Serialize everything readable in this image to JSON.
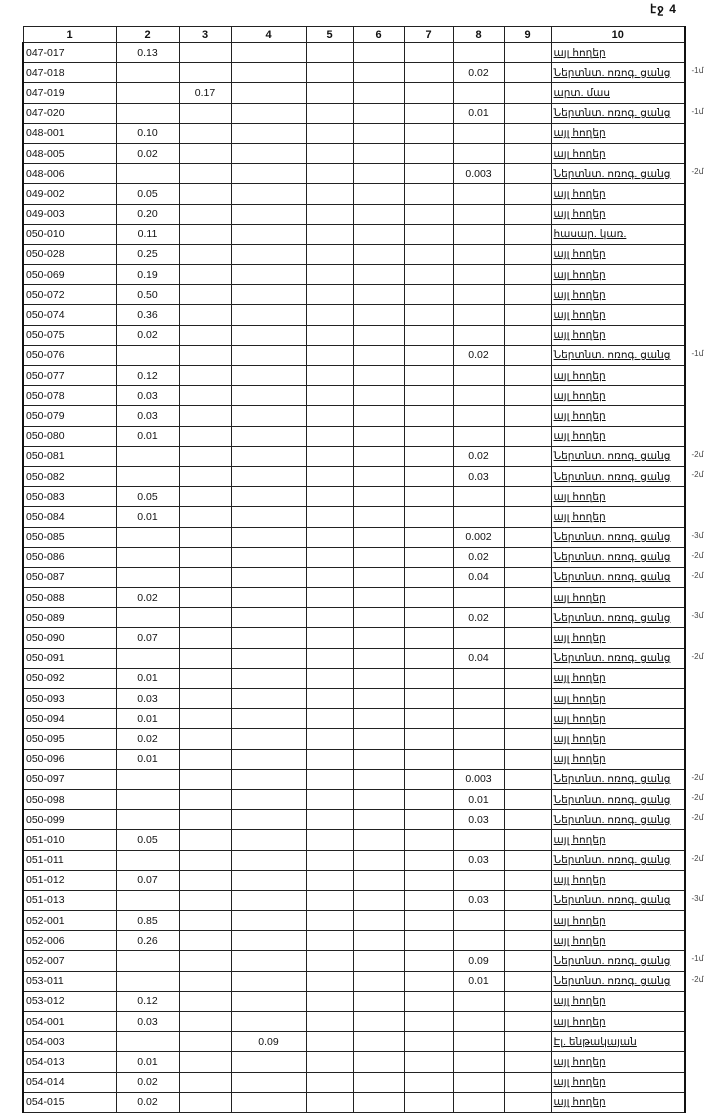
{
  "page_label": "էջ 4",
  "headers": [
    "1",
    "2",
    "3",
    "4",
    "5",
    "6",
    "7",
    "8",
    "9",
    "10"
  ],
  "rows": [
    {
      "cells": [
        "047-017",
        "0.13",
        "",
        "",
        "",
        "",
        "",
        "",
        "",
        "այլ հողեր"
      ],
      "mark": ""
    },
    {
      "cells": [
        "047-018",
        "",
        "",
        "",
        "",
        "",
        "",
        "0.02",
        "",
        "Ներտնտ. ոռոգ. ցանց"
      ],
      "mark": "-1մ"
    },
    {
      "cells": [
        "047-019",
        "",
        "0.17",
        "",
        "",
        "",
        "",
        "",
        "",
        "արտ. մաս"
      ],
      "mark": ""
    },
    {
      "cells": [
        "047-020",
        "",
        "",
        "",
        "",
        "",
        "",
        "0.01",
        "",
        "Ներտնտ. ոռոգ. ցանց"
      ],
      "mark": "-1մ"
    },
    {
      "cells": [
        "048-001",
        "0.10",
        "",
        "",
        "",
        "",
        "",
        "",
        "",
        "այլ հողեր"
      ],
      "mark": ""
    },
    {
      "cells": [
        "048-005",
        "0.02",
        "",
        "",
        "",
        "",
        "",
        "",
        "",
        "այլ հողեր"
      ],
      "mark": ""
    },
    {
      "cells": [
        "048-006",
        "",
        "",
        "",
        "",
        "",
        "",
        "0.003",
        "",
        "Ներտնտ. ոռոգ. ցանց"
      ],
      "mark": "-2մ"
    },
    {
      "cells": [
        "049-002",
        "0.05",
        "",
        "",
        "",
        "",
        "",
        "",
        "",
        "այլ հողեր"
      ],
      "mark": ""
    },
    {
      "cells": [
        "049-003",
        "0.20",
        "",
        "",
        "",
        "",
        "",
        "",
        "",
        "այլ հողեր"
      ],
      "mark": ""
    },
    {
      "cells": [
        "050-010",
        "0.11",
        "",
        "",
        "",
        "",
        "",
        "",
        "",
        "հասար. կառ."
      ],
      "mark": ""
    },
    {
      "cells": [
        "050-028",
        "0.25",
        "",
        "",
        "",
        "",
        "",
        "",
        "",
        "այլ հողեր"
      ],
      "mark": ""
    },
    {
      "cells": [
        "050-069",
        "0.19",
        "",
        "",
        "",
        "",
        "",
        "",
        "",
        "այլ հողեր"
      ],
      "mark": ""
    },
    {
      "cells": [
        "050-072",
        "0.50",
        "",
        "",
        "",
        "",
        "",
        "",
        "",
        "այլ հողեր"
      ],
      "mark": ""
    },
    {
      "cells": [
        "050-074",
        "0.36",
        "",
        "",
        "",
        "",
        "",
        "",
        "",
        "այլ հողեր"
      ],
      "mark": ""
    },
    {
      "cells": [
        "050-075",
        "0.02",
        "",
        "",
        "",
        "",
        "",
        "",
        "",
        "այլ հողեր"
      ],
      "mark": ""
    },
    {
      "cells": [
        "050-076",
        "",
        "",
        "",
        "",
        "",
        "",
        "0.02",
        "",
        "Ներտնտ. ոռոգ. ցանց"
      ],
      "mark": "-1մ"
    },
    {
      "cells": [
        "050-077",
        "0.12",
        "",
        "",
        "",
        "",
        "",
        "",
        "",
        "այլ հողեր"
      ],
      "mark": ""
    },
    {
      "cells": [
        "050-078",
        "0.03",
        "",
        "",
        "",
        "",
        "",
        "",
        "",
        "այլ հողեր"
      ],
      "mark": ""
    },
    {
      "cells": [
        "050-079",
        "0.03",
        "",
        "",
        "",
        "",
        "",
        "",
        "",
        "այլ հողեր"
      ],
      "mark": ""
    },
    {
      "cells": [
        "050-080",
        "0.01",
        "",
        "",
        "",
        "",
        "",
        "",
        "",
        "այլ հողեր"
      ],
      "mark": ""
    },
    {
      "cells": [
        "050-081",
        "",
        "",
        "",
        "",
        "",
        "",
        "0.02",
        "",
        "Ներտնտ. ոռոգ. ցանց"
      ],
      "mark": "-2մ"
    },
    {
      "cells": [
        "050-082",
        "",
        "",
        "",
        "",
        "",
        "",
        "0.03",
        "",
        "Ներտնտ. ոռոգ. ցանց"
      ],
      "mark": "-2մ"
    },
    {
      "cells": [
        "050-083",
        "0.05",
        "",
        "",
        "",
        "",
        "",
        "",
        "",
        "այլ հողեր"
      ],
      "mark": ""
    },
    {
      "cells": [
        "050-084",
        "0.01",
        "",
        "",
        "",
        "",
        "",
        "",
        "",
        "այլ հողեր"
      ],
      "mark": ""
    },
    {
      "cells": [
        "050-085",
        "",
        "",
        "",
        "",
        "",
        "",
        "0.002",
        "",
        "Ներտնտ. ոռոգ. ցանց"
      ],
      "mark": "-3մ"
    },
    {
      "cells": [
        "050-086",
        "",
        "",
        "",
        "",
        "",
        "",
        "0.02",
        "",
        "Ներտնտ. ոռոգ. ցանց"
      ],
      "mark": "-2մ"
    },
    {
      "cells": [
        "050-087",
        "",
        "",
        "",
        "",
        "",
        "",
        "0.04",
        "",
        "Ներտնտ. ոռոգ. ցանց"
      ],
      "mark": "-2մ"
    },
    {
      "cells": [
        "050-088",
        "0.02",
        "",
        "",
        "",
        "",
        "",
        "",
        "",
        "այլ հողեր"
      ],
      "mark": ""
    },
    {
      "cells": [
        "050-089",
        "",
        "",
        "",
        "",
        "",
        "",
        "0.02",
        "",
        "Ներտնտ. ոռոգ. ցանց"
      ],
      "mark": "-3մ"
    },
    {
      "cells": [
        "050-090",
        "0.07",
        "",
        "",
        "",
        "",
        "",
        "",
        "",
        "այլ հողեր"
      ],
      "mark": ""
    },
    {
      "cells": [
        "050-091",
        "",
        "",
        "",
        "",
        "",
        "",
        "0.04",
        "",
        "Ներտնտ. ոռոգ. ցանց"
      ],
      "mark": "-2մ"
    },
    {
      "cells": [
        "050-092",
        "0.01",
        "",
        "",
        "",
        "",
        "",
        "",
        "",
        "այլ հողեր"
      ],
      "mark": ""
    },
    {
      "cells": [
        "050-093",
        "0.03",
        "",
        "",
        "",
        "",
        "",
        "",
        "",
        "այլ հողեր"
      ],
      "mark": ""
    },
    {
      "cells": [
        "050-094",
        "0.01",
        "",
        "",
        "",
        "",
        "",
        "",
        "",
        "այլ հողեր"
      ],
      "mark": ""
    },
    {
      "cells": [
        "050-095",
        "0.02",
        "",
        "",
        "",
        "",
        "",
        "",
        "",
        "այլ հողեր"
      ],
      "mark": ""
    },
    {
      "cells": [
        "050-096",
        "0.01",
        "",
        "",
        "",
        "",
        "",
        "",
        "",
        "այլ հողեր"
      ],
      "mark": ""
    },
    {
      "cells": [
        "050-097",
        "",
        "",
        "",
        "",
        "",
        "",
        "0.003",
        "",
        "Ներտնտ. ոռոգ. ցանց"
      ],
      "mark": "-2մ"
    },
    {
      "cells": [
        "050-098",
        "",
        "",
        "",
        "",
        "",
        "",
        "0.01",
        "",
        "Ներտնտ. ոռոգ. ցանց"
      ],
      "mark": "-2մ"
    },
    {
      "cells": [
        "050-099",
        "",
        "",
        "",
        "",
        "",
        "",
        "0.03",
        "",
        "Ներտնտ. ոռոգ. ցանց"
      ],
      "mark": "-2մ"
    },
    {
      "cells": [
        "051-010",
        "0.05",
        "",
        "",
        "",
        "",
        "",
        "",
        "",
        "այլ հողեր"
      ],
      "mark": ""
    },
    {
      "cells": [
        "051-011",
        "",
        "",
        "",
        "",
        "",
        "",
        "0.03",
        "",
        "Ներտնտ. ոռոգ. ցանց"
      ],
      "mark": "-2մ"
    },
    {
      "cells": [
        "051-012",
        "0.07",
        "",
        "",
        "",
        "",
        "",
        "",
        "",
        "այլ հողեր"
      ],
      "mark": ""
    },
    {
      "cells": [
        "051-013",
        "",
        "",
        "",
        "",
        "",
        "",
        "0.03",
        "",
        "Ներտնտ. ոռոգ. ցանց"
      ],
      "mark": "-3մ"
    },
    {
      "cells": [
        "052-001",
        "0.85",
        "",
        "",
        "",
        "",
        "",
        "",
        "",
        "այլ հողեր"
      ],
      "mark": ""
    },
    {
      "cells": [
        "052-006",
        "0.26",
        "",
        "",
        "",
        "",
        "",
        "",
        "",
        "այլ հողեր"
      ],
      "mark": ""
    },
    {
      "cells": [
        "052-007",
        "",
        "",
        "",
        "",
        "",
        "",
        "0.09",
        "",
        "Ներտնտ. ոռոգ. ցանց"
      ],
      "mark": "-1մ"
    },
    {
      "cells": [
        "053-011",
        "",
        "",
        "",
        "",
        "",
        "",
        "0.01",
        "",
        "Ներտնտ. ոռոգ. ցանց"
      ],
      "mark": "-2մ"
    },
    {
      "cells": [
        "053-012",
        "0.12",
        "",
        "",
        "",
        "",
        "",
        "",
        "",
        "այլ հողեր"
      ],
      "mark": ""
    },
    {
      "cells": [
        "054-001",
        "0.03",
        "",
        "",
        "",
        "",
        "",
        "",
        "",
        "այլ հողեր"
      ],
      "mark": ""
    },
    {
      "cells": [
        "054-003",
        "",
        "",
        "0.09",
        "",
        "",
        "",
        "",
        "",
        "Էլ. ենթակայան"
      ],
      "mark": ""
    },
    {
      "cells": [
        "054-013",
        "0.01",
        "",
        "",
        "",
        "",
        "",
        "",
        "",
        "այլ հողեր"
      ],
      "mark": ""
    },
    {
      "cells": [
        "054-014",
        "0.02",
        "",
        "",
        "",
        "",
        "",
        "",
        "",
        "այլ հողեր"
      ],
      "mark": ""
    },
    {
      "cells": [
        "054-015",
        "0.02",
        "",
        "",
        "",
        "",
        "",
        "",
        "",
        "այլ հողեր"
      ],
      "mark": ""
    }
  ]
}
